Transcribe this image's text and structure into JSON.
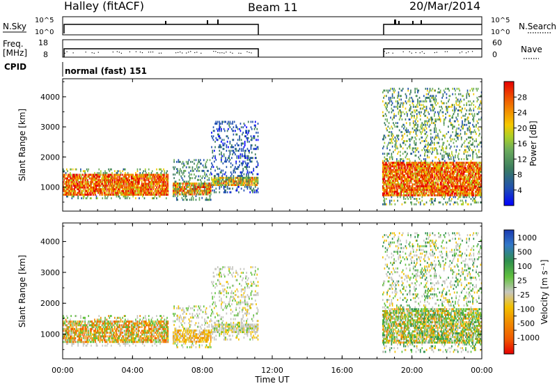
{
  "header": {
    "station": "Halley (fitACF)",
    "beam": "Beam 11",
    "date": "20/Mar/2014"
  },
  "top_panels": {
    "nsky_label": "N.Sky",
    "nsky_ticks": [
      "10^5",
      "10^0"
    ],
    "nsearch_label": "N.Search",
    "nsearch_ticks": [
      "10^5",
      "10^0"
    ],
    "freq_label_1": "Freq.",
    "freq_label_2": "[MHz]",
    "freq_ticks": [
      "18",
      "8"
    ],
    "nave_label": "Nave",
    "nave_ticks": [
      "60",
      "0"
    ],
    "cpid_label": "CPID",
    "cpid_value": "normal (fast) 151"
  },
  "colors": {
    "axis": "#000000",
    "power_scale": [
      "#0000ff",
      "#2050b0",
      "#3c7d5e",
      "#6cac5c",
      "#a8cf2a",
      "#f5c800",
      "#f28a00",
      "#ee4c00",
      "#e60000"
    ],
    "velocity_scale": [
      "#1a3ab0",
      "#3278c8",
      "#2f8f4e",
      "#62c13f",
      "#c6c6c0",
      "#f2c000",
      "#f08a00",
      "#f05a00",
      "#e60000"
    ]
  },
  "chart_data": [
    {
      "type": "heatmap",
      "name": "power",
      "ylabel": "Slant Range [km]",
      "yticks": [
        "1000",
        "2000",
        "3000",
        "4000"
      ],
      "ylim": [
        200,
        4600
      ],
      "xlim": [
        0,
        24
      ],
      "colorbar_label": "Power [dB]",
      "colorbar_ticks": [
        "4",
        "8",
        "12",
        "16",
        "20",
        "24",
        "28"
      ],
      "colorbar_range": [
        0,
        32
      ],
      "regions": [
        {
          "t": [
            0.0,
            6.0
          ],
          "range": [
            600,
            1600
          ],
          "core": [
            700,
            1400
          ],
          "level": "high"
        },
        {
          "t": [
            6.3,
            8.5
          ],
          "range": [
            550,
            1900
          ],
          "core": [
            700,
            1100
          ],
          "level": "medium"
        },
        {
          "t": [
            8.5,
            11.2
          ],
          "range": [
            800,
            3200
          ],
          "core": [
            1000,
            1300
          ],
          "level": "low"
        },
        {
          "t": [
            18.3,
            24.0
          ],
          "range": [
            400,
            4300
          ],
          "core": [
            700,
            1800
          ],
          "level": "high"
        }
      ]
    },
    {
      "type": "heatmap",
      "name": "velocity",
      "ylabel": "Slant Range [km]",
      "yticks": [
        "1000",
        "2000",
        "3000",
        "4000"
      ],
      "ylim": [
        200,
        4600
      ],
      "xlim": [
        0,
        24
      ],
      "xticks": [
        "00:00",
        "04:00",
        "08:00",
        "12:00",
        "16:00",
        "20:00",
        "00:00"
      ],
      "xlabel": "Time UT",
      "colorbar_label": "Velocity [m s⁻¹]",
      "colorbar_ticks": [
        "1000",
        "500",
        "100",
        "25",
        "-25",
        "-100",
        "-500",
        "-1000"
      ]
    }
  ]
}
